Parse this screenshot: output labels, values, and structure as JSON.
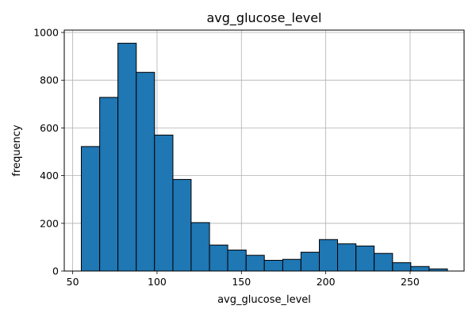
{
  "chart_data": {
    "type": "bar",
    "title": "avg_glucose_level",
    "xlabel": "avg_glucose_level",
    "ylabel": "frequency",
    "xlim": [
      45,
      282
    ],
    "ylim": [
      0,
      1010
    ],
    "xticks": [
      50,
      100,
      150,
      200,
      250
    ],
    "yticks": [
      0,
      200,
      400,
      600,
      800,
      1000
    ],
    "grid": true,
    "bar_color": "#1f77b4",
    "edge_color": "#000000",
    "bins": [
      {
        "x0": 55.1,
        "x1": 66.0,
        "value": 522
      },
      {
        "x0": 66.0,
        "x1": 76.8,
        "value": 728
      },
      {
        "x0": 76.8,
        "x1": 87.7,
        "value": 955
      },
      {
        "x0": 87.7,
        "x1": 98.5,
        "value": 833
      },
      {
        "x0": 98.5,
        "x1": 109.4,
        "value": 570
      },
      {
        "x0": 109.4,
        "x1": 120.2,
        "value": 384
      },
      {
        "x0": 120.2,
        "x1": 131.1,
        "value": 203
      },
      {
        "x0": 131.1,
        "x1": 141.9,
        "value": 109
      },
      {
        "x0": 141.9,
        "x1": 152.8,
        "value": 88
      },
      {
        "x0": 152.8,
        "x1": 163.6,
        "value": 66
      },
      {
        "x0": 163.6,
        "x1": 174.5,
        "value": 45
      },
      {
        "x0": 174.5,
        "x1": 185.3,
        "value": 49
      },
      {
        "x0": 185.3,
        "x1": 196.2,
        "value": 79
      },
      {
        "x0": 196.2,
        "x1": 207.0,
        "value": 132
      },
      {
        "x0": 207.0,
        "x1": 217.9,
        "value": 114
      },
      {
        "x0": 217.9,
        "x1": 228.7,
        "value": 105
      },
      {
        "x0": 228.7,
        "x1": 239.6,
        "value": 74
      },
      {
        "x0": 239.6,
        "x1": 250.4,
        "value": 35
      },
      {
        "x0": 250.4,
        "x1": 261.3,
        "value": 19
      },
      {
        "x0": 261.3,
        "x1": 272.1,
        "value": 9
      }
    ]
  }
}
